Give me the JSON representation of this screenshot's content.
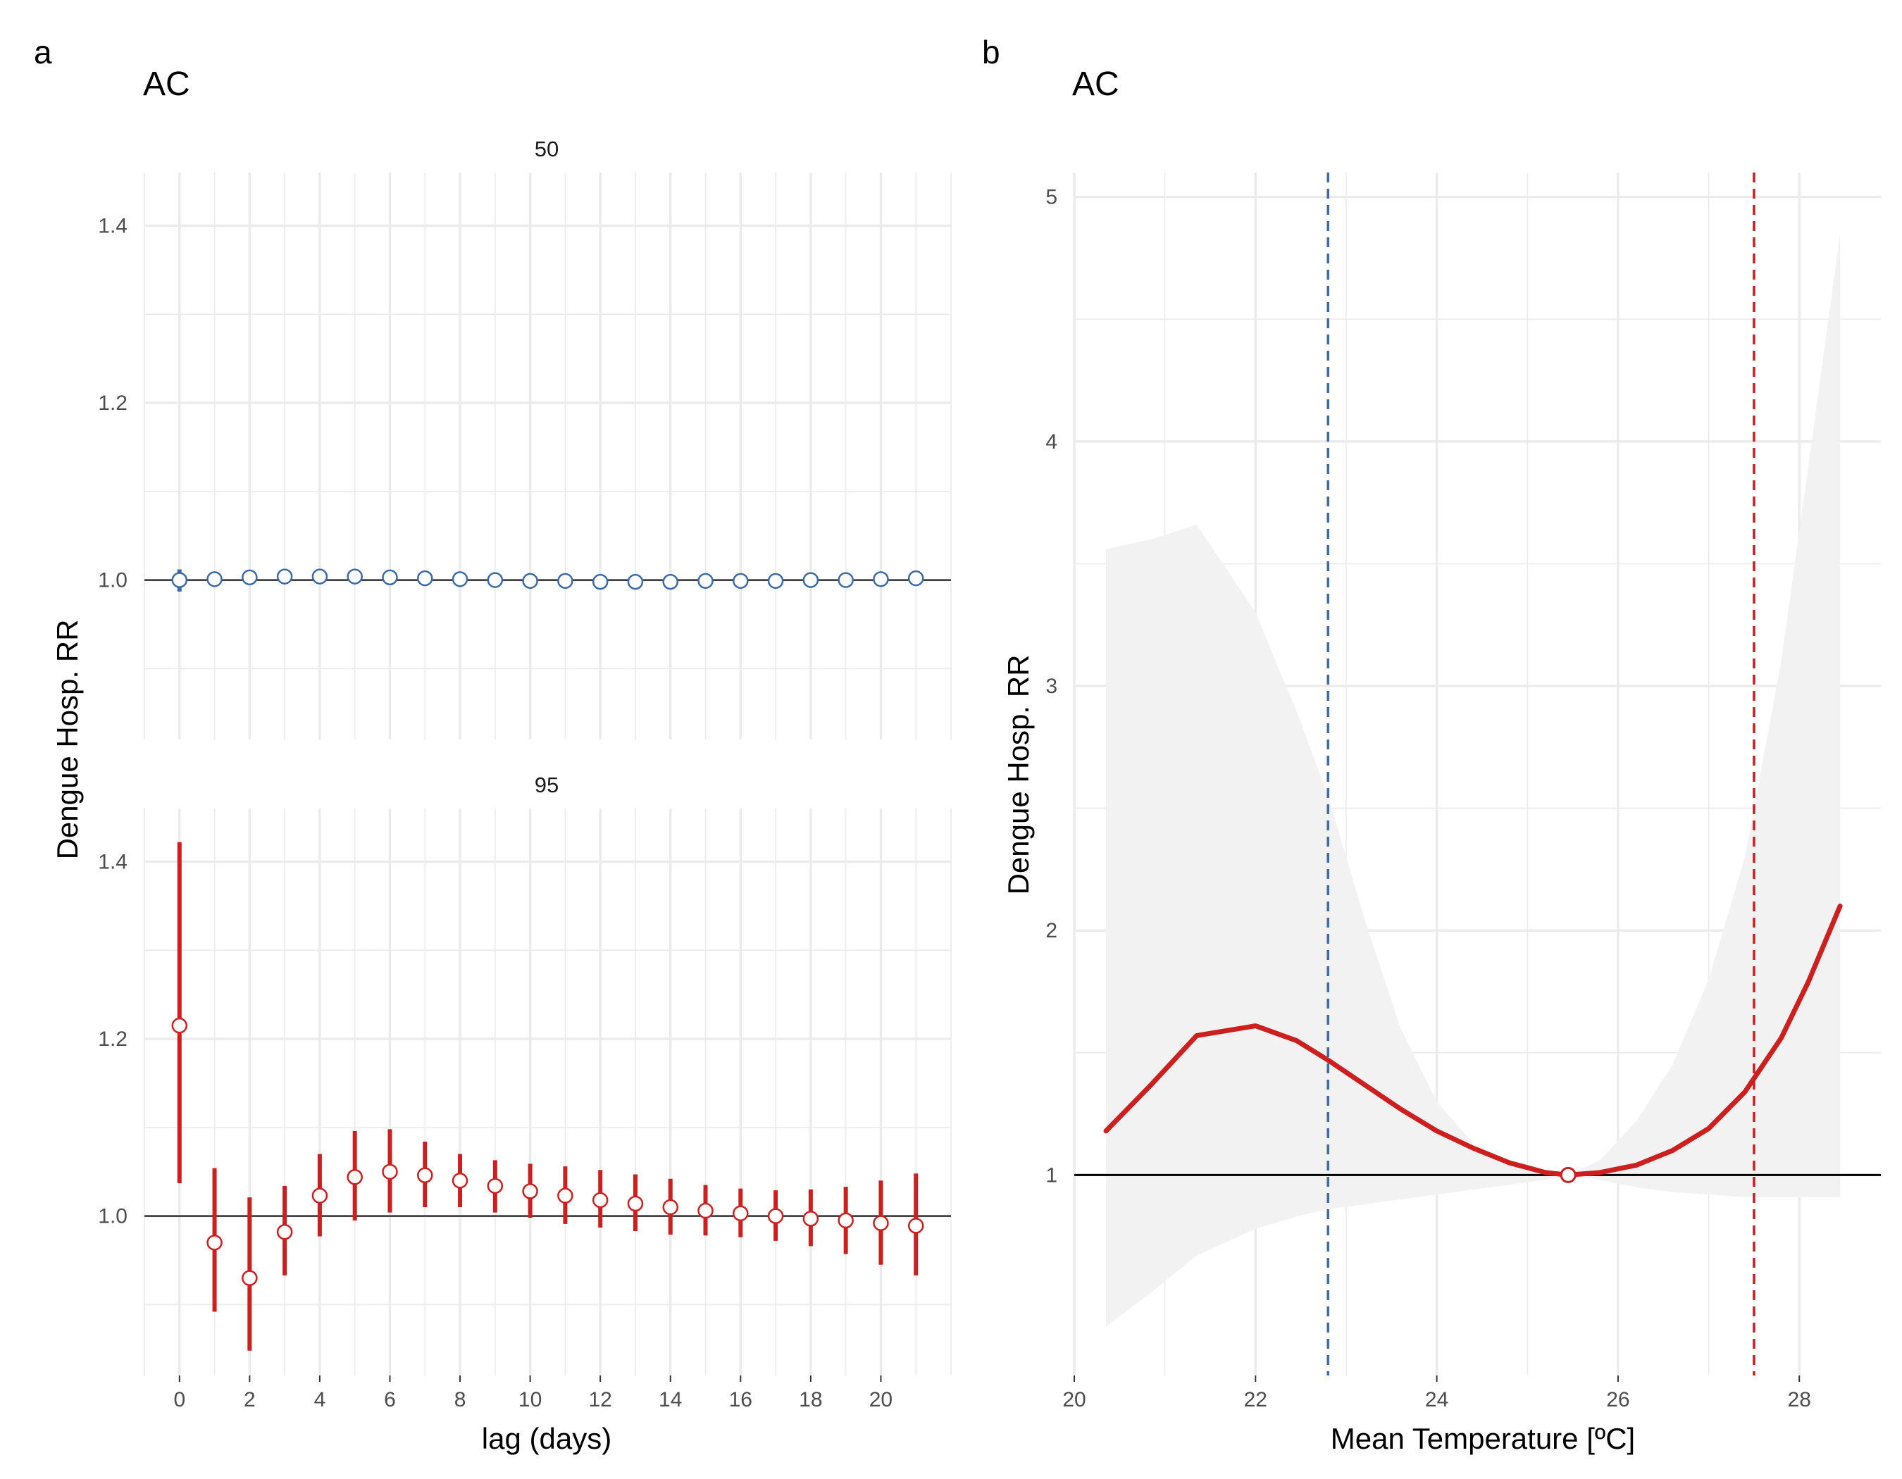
{
  "colors": {
    "blue": "#3b6aa8",
    "red": "#cc1f1f",
    "band": "#f2f2f2",
    "refline": "#000000"
  },
  "chart_data": [
    {
      "panel_tag": "a",
      "title": "AC",
      "type": "scatter",
      "xlabel": "lag (days)",
      "ylabel": "Dengue Hosp. RR",
      "xlim": [
        -1,
        22
      ],
      "x_ticks": [
        0,
        2,
        4,
        6,
        8,
        10,
        12,
        14,
        16,
        18,
        20
      ],
      "x_tick_labels": [
        "0",
        "2",
        "4",
        "6",
        "8",
        "10",
        "12",
        "14",
        "16",
        "18",
        "20"
      ],
      "grid": true,
      "reference_y": 1.0,
      "facets": [
        {
          "label": "50",
          "color": "#3b6aa8",
          "ylim": [
            0.82,
            1.46
          ],
          "y_ticks": [
            1.0,
            1.2,
            1.4
          ],
          "y_tick_labels": [
            "1.0",
            "1.2",
            "1.4"
          ],
          "x": [
            0,
            1,
            2,
            3,
            4,
            5,
            6,
            7,
            8,
            9,
            10,
            11,
            12,
            13,
            14,
            15,
            16,
            17,
            18,
            19,
            20,
            21
          ],
          "values": [
            1.0,
            1.001,
            1.003,
            1.004,
            1.004,
            1.004,
            1.003,
            1.002,
            1.001,
            1.0,
            0.999,
            0.999,
            0.998,
            0.998,
            0.998,
            0.999,
            0.999,
            0.999,
            1.0,
            1.0,
            1.001,
            1.002
          ],
          "lower": [
            0.987,
            0.998,
            1.0,
            1.002,
            1.002,
            1.002,
            1.002,
            1.001,
            1.0,
            0.999,
            0.998,
            0.998,
            0.997,
            0.997,
            0.997,
            0.997,
            0.997,
            0.997,
            0.998,
            0.998,
            0.998,
            0.998
          ],
          "upper": [
            1.012,
            1.004,
            1.006,
            1.006,
            1.006,
            1.006,
            1.005,
            1.004,
            1.003,
            1.002,
            1.001,
            1.0,
            1.0,
            1.0,
            1.0,
            1.0,
            1.001,
            1.001,
            1.002,
            1.003,
            1.004,
            1.005
          ]
        },
        {
          "label": "95",
          "color": "#cc1f1f",
          "ylim": [
            0.82,
            1.46
          ],
          "y_ticks": [
            1.0,
            1.2,
            1.4
          ],
          "y_tick_labels": [
            "1.0",
            "1.2",
            "1.4"
          ],
          "x": [
            0,
            1,
            2,
            3,
            4,
            5,
            6,
            7,
            8,
            9,
            10,
            11,
            12,
            13,
            14,
            15,
            16,
            17,
            18,
            19,
            20,
            21
          ],
          "values": [
            1.215,
            0.97,
            0.93,
            0.982,
            1.023,
            1.044,
            1.05,
            1.046,
            1.04,
            1.034,
            1.028,
            1.023,
            1.018,
            1.014,
            1.01,
            1.006,
            1.003,
            1.0,
            0.997,
            0.995,
            0.992,
            0.989
          ],
          "lower": [
            1.037,
            0.892,
            0.848,
            0.933,
            0.977,
            0.995,
            1.004,
            1.01,
            1.01,
            1.004,
            0.998,
            0.991,
            0.987,
            0.983,
            0.979,
            0.978,
            0.976,
            0.972,
            0.966,
            0.957,
            0.945,
            0.933
          ],
          "upper": [
            1.422,
            1.054,
            1.021,
            1.034,
            1.07,
            1.096,
            1.098,
            1.084,
            1.07,
            1.063,
            1.059,
            1.056,
            1.052,
            1.047,
            1.042,
            1.035,
            1.031,
            1.029,
            1.03,
            1.033,
            1.04,
            1.048
          ]
        }
      ]
    },
    {
      "panel_tag": "b",
      "title": "AC",
      "type": "line",
      "xlabel": "Mean Temperature [ºC]",
      "ylabel": "Dengue Hosp. RR",
      "xlim": [
        20,
        28.9
      ],
      "ylim": [
        0.18,
        5.1
      ],
      "x_ticks": [
        20,
        22,
        24,
        26,
        28
      ],
      "x_tick_labels": [
        "20",
        "22",
        "24",
        "26",
        "28"
      ],
      "y_ticks": [
        1,
        2,
        3,
        4,
        5
      ],
      "y_tick_labels": [
        "1",
        "2",
        "3",
        "4",
        "5"
      ],
      "grid": true,
      "reference_y": 1,
      "reference_point": {
        "x": 25.45,
        "y": 1.0
      },
      "vlines": [
        {
          "x": 22.8,
          "color": "#3b6aa8",
          "style": "dashed"
        },
        {
          "x": 27.5,
          "color": "#cc1f1f",
          "style": "dashed"
        }
      ],
      "series": [
        {
          "color": "#cc1f1f",
          "x": [
            20.35,
            20.85,
            21.35,
            22.0,
            22.45,
            22.8,
            23.2,
            23.6,
            24.0,
            24.4,
            24.8,
            25.2,
            25.45,
            25.8,
            26.2,
            26.6,
            27.0,
            27.4,
            27.8,
            28.1,
            28.45
          ],
          "y": [
            1.18,
            1.37,
            1.57,
            1.61,
            1.55,
            1.47,
            1.37,
            1.27,
            1.18,
            1.11,
            1.05,
            1.01,
            1.0,
            1.01,
            1.04,
            1.1,
            1.19,
            1.34,
            1.56,
            1.79,
            2.1
          ]
        }
      ],
      "confidence_band": {
        "x": [
          20.35,
          20.85,
          21.35,
          22.0,
          22.45,
          22.8,
          23.2,
          23.6,
          24.0,
          24.4,
          24.8,
          25.2,
          25.45,
          25.8,
          26.2,
          26.6,
          27.0,
          27.4,
          27.8,
          28.1,
          28.45
        ],
        "lower": [
          0.38,
          0.52,
          0.67,
          0.78,
          0.83,
          0.86,
          0.88,
          0.9,
          0.92,
          0.94,
          0.96,
          0.98,
          1.0,
          0.98,
          0.95,
          0.93,
          0.92,
          0.91,
          0.91,
          0.91,
          0.91
        ],
        "upper": [
          3.56,
          3.6,
          3.66,
          3.3,
          2.9,
          2.55,
          2.05,
          1.6,
          1.3,
          1.13,
          1.05,
          1.02,
          1.0,
          1.06,
          1.22,
          1.45,
          1.8,
          2.3,
          3.1,
          3.9,
          4.85
        ]
      }
    }
  ]
}
